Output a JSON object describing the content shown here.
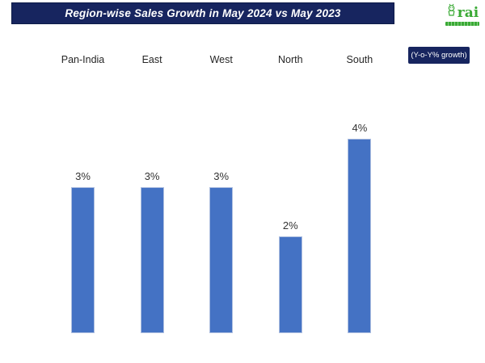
{
  "header": {
    "title": "Region-wise Sales Growth in May 2024 vs May 2023",
    "bg_color": "#17255f",
    "text_color": "#ffffff"
  },
  "logo": {
    "text": "rai",
    "color": "#3aaa35",
    "icon": "mascot-person-icon"
  },
  "badge": {
    "label": "(Y-o-Y% growth)",
    "bg_color": "#17255f",
    "text_color": "#ffffff"
  },
  "chart_data": {
    "type": "bar",
    "title": "Region-wise Sales Growth in May 2024 vs May 2023",
    "categories": [
      "Pan-India",
      "East",
      "West",
      "North",
      "South"
    ],
    "values": [
      3,
      3,
      3,
      2,
      4
    ],
    "value_labels": [
      "3%",
      "3%",
      "3%",
      "2%",
      "4%"
    ],
    "unit": "Y-o-Y % growth",
    "xlabel": "",
    "ylabel": "",
    "ylim": [
      0,
      4
    ],
    "gridlines": false,
    "axes_visible": false,
    "legend": "none",
    "category_label_position": "top",
    "data_label_position": "above-bars",
    "bar_color": "#4472c4",
    "bar_border_color": "#aebfe0",
    "label_color": "#262626"
  }
}
